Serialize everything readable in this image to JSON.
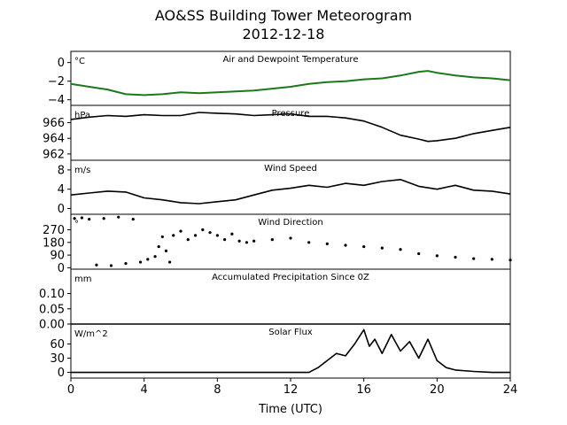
{
  "figure": {
    "title": "AO&SS Building Tower Meteorogram",
    "subtitle": "2012-12-18",
    "xlabel": "Time (UTC)"
  },
  "chart_data": [
    {
      "type": "line",
      "title": "Air and Dewpoint Temperature",
      "unit_label": "°C",
      "color": "#1a7a1a",
      "xlim": [
        0,
        24
      ],
      "ylim": [
        -4.6,
        1.2
      ],
      "yticks": [
        0,
        -2,
        -4
      ],
      "ytick_labels": [
        "0",
        "−2",
        "−4"
      ],
      "x": [
        0,
        1,
        2,
        3,
        4,
        5,
        6,
        7,
        8,
        9,
        10,
        11,
        12,
        13,
        14,
        15,
        16,
        17,
        18,
        19,
        19.5,
        20,
        21,
        22,
        23,
        24
      ],
      "y": [
        -2.3,
        -2.6,
        -2.9,
        -3.4,
        -3.5,
        -3.4,
        -3.2,
        -3.3,
        -3.2,
        -3.1,
        -3.0,
        -2.8,
        -2.6,
        -2.3,
        -2.1,
        -2.0,
        -1.8,
        -1.7,
        -1.4,
        -1.0,
        -0.9,
        -1.1,
        -1.4,
        -1.6,
        -1.7,
        -1.9
      ]
    },
    {
      "type": "line",
      "title": "Pressure",
      "unit_label": "hPa",
      "color": "#000000",
      "xlim": [
        0,
        24
      ],
      "ylim": [
        961.2,
        968.2
      ],
      "yticks": [
        966,
        964,
        962
      ],
      "ytick_labels": [
        "966",
        "964",
        "962"
      ],
      "x": [
        0,
        1,
        2,
        3,
        4,
        5,
        6,
        7,
        8,
        9,
        10,
        11,
        12,
        13,
        14,
        15,
        16,
        17,
        18,
        19,
        19.5,
        20,
        21,
        22,
        23,
        24
      ],
      "y": [
        966.4,
        966.7,
        966.9,
        966.8,
        967.0,
        966.9,
        966.9,
        967.3,
        967.2,
        967.1,
        966.9,
        967.0,
        967.1,
        966.8,
        966.8,
        966.6,
        966.2,
        965.4,
        964.4,
        963.9,
        963.6,
        963.7,
        964.0,
        964.6,
        965.0,
        965.4
      ]
    },
    {
      "type": "line",
      "title": "Wind Speed",
      "unit_label": "m/s",
      "color": "#000000",
      "xlim": [
        0,
        24
      ],
      "ylim": [
        -1.2,
        10
      ],
      "yticks": [
        8,
        4,
        0
      ],
      "ytick_labels": [
        "8",
        "4",
        "0"
      ],
      "x": [
        0,
        1,
        2,
        3,
        4,
        5,
        6,
        7,
        8,
        9,
        10,
        11,
        12,
        13,
        14,
        15,
        16,
        17,
        18,
        19,
        20,
        21,
        22,
        23,
        24
      ],
      "y": [
        2.8,
        3.2,
        3.6,
        3.4,
        2.2,
        1.8,
        1.2,
        1.0,
        1.4,
        1.8,
        2.8,
        3.8,
        4.2,
        4.8,
        4.4,
        5.2,
        4.8,
        5.6,
        6.0,
        4.6,
        4.0,
        4.8,
        3.8,
        3.6,
        3.0
      ]
    },
    {
      "type": "scatter",
      "title": "Wind Direction",
      "unit_label": "°",
      "color": "#000000",
      "xlim": [
        0,
        24
      ],
      "ylim": [
        -10,
        380
      ],
      "yticks": [
        270,
        180,
        90,
        0
      ],
      "ytick_labels": [
        "270",
        "180",
        "90",
        "0"
      ],
      "x": [
        0.2,
        0.6,
        1.0,
        1.4,
        1.8,
        2.2,
        2.6,
        3.0,
        3.4,
        3.8,
        4.2,
        4.6,
        4.8,
        5.0,
        5.2,
        5.4,
        5.6,
        6.0,
        6.4,
        6.8,
        7.2,
        7.6,
        8.0,
        8.4,
        8.8,
        9.2,
        9.6,
        10,
        11,
        12,
        13,
        14,
        15,
        16,
        17,
        18,
        19,
        20,
        21,
        22,
        23,
        24
      ],
      "y": [
        350,
        355,
        345,
        20,
        350,
        15,
        360,
        30,
        345,
        40,
        60,
        80,
        150,
        220,
        120,
        40,
        230,
        260,
        200,
        230,
        270,
        250,
        230,
        200,
        240,
        190,
        180,
        190,
        200,
        210,
        180,
        170,
        160,
        150,
        140,
        130,
        100,
        85,
        75,
        65,
        60,
        55
      ]
    },
    {
      "type": "line",
      "title": "Accumulated Precipitation Since 0Z",
      "unit_label": "mm",
      "color": "#000000",
      "xlim": [
        0,
        24
      ],
      "ylim": [
        0,
        0.18
      ],
      "yticks": [
        0.1,
        0.05,
        0.0
      ],
      "ytick_labels": [
        "0.10",
        "0.05",
        "0.00"
      ],
      "x": [
        0,
        24
      ],
      "y": [
        0,
        0
      ]
    },
    {
      "type": "line",
      "title": "Solar Flux",
      "unit_label": "W/m^2",
      "color": "#000000",
      "xlim": [
        0,
        24
      ],
      "ylim": [
        -12,
        102
      ],
      "yticks": [
        60,
        30,
        0
      ],
      "ytick_labels": [
        "60",
        "30",
        "0"
      ],
      "x": [
        0,
        13,
        13.5,
        14,
        14.5,
        15,
        15.5,
        16,
        16.3,
        16.6,
        17,
        17.5,
        18,
        18.5,
        19,
        19.5,
        20,
        20.5,
        21,
        22,
        23,
        24
      ],
      "y": [
        0,
        0,
        10,
        25,
        40,
        35,
        60,
        90,
        55,
        70,
        40,
        80,
        45,
        65,
        30,
        70,
        25,
        10,
        5,
        2,
        0,
        0
      ]
    }
  ],
  "xticks": [
    0,
    4,
    8,
    12,
    16,
    20,
    24
  ],
  "xtick_labels": [
    "0",
    "4",
    "8",
    "12",
    "16",
    "20",
    "24"
  ]
}
